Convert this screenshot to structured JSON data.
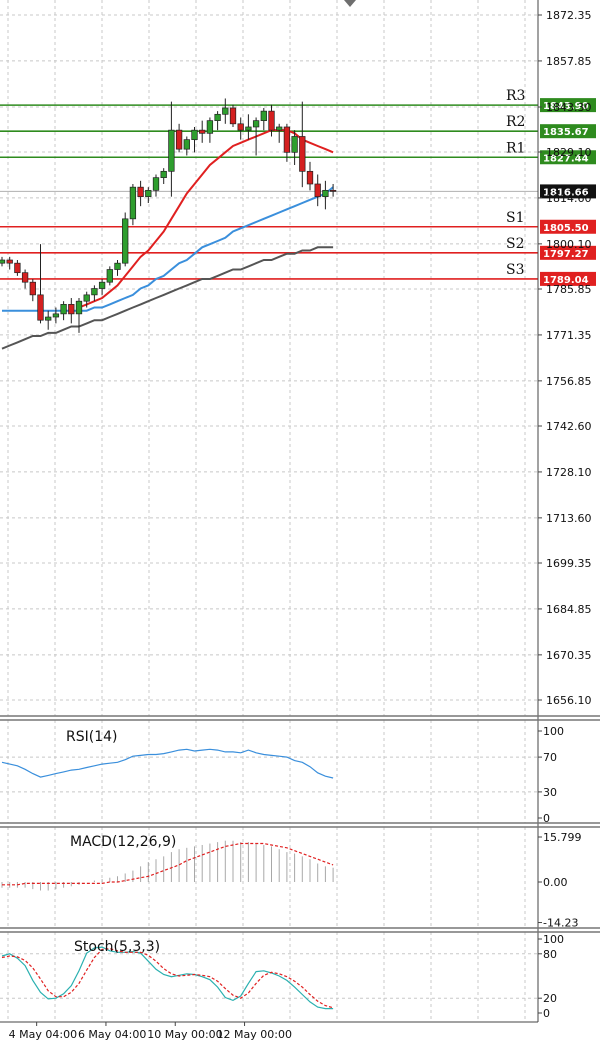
{
  "chart_data": {
    "type": "candlestick",
    "price_axis": {
      "range": [
        1650.0,
        1878.0
      ],
      "ticks": [
        "1872.35",
        "1857.85",
        "1843.30",
        "1829.10",
        "1814.60",
        "1800.10",
        "1785.85",
        "1771.35",
        "1756.85",
        "1742.60",
        "1728.10",
        "1713.60",
        "1699.35",
        "1684.85",
        "1670.35",
        "1656.10"
      ]
    },
    "levels": [
      {
        "name": "R3",
        "value": 1843.9,
        "label": "1843.90",
        "color": "#2e8b1e"
      },
      {
        "name": "R2",
        "value": 1835.67,
        "label": "1835.67",
        "color": "#2e8b1e"
      },
      {
        "name": "R1",
        "value": 1827.44,
        "label": "1827.44",
        "color": "#2e8b1e"
      },
      {
        "name": "S1",
        "value": 1805.5,
        "label": "1805.50",
        "color": "#e02020"
      },
      {
        "name": "S2",
        "value": 1797.27,
        "label": "1797.27",
        "color": "#e02020"
      },
      {
        "name": "S3",
        "value": 1789.04,
        "label": "1789.04",
        "color": "#e02020"
      }
    ],
    "current_price": {
      "value": 1816.66,
      "label": "1816.66"
    },
    "candles": [
      [
        1794,
        1796,
        1793,
        1795
      ],
      [
        1795,
        1796,
        1792,
        1794
      ],
      [
        1794,
        1795,
        1790,
        1791
      ],
      [
        1791,
        1792,
        1786,
        1788
      ],
      [
        1788,
        1789,
        1782,
        1784
      ],
      [
        1784,
        1800,
        1775,
        1776
      ],
      [
        1776,
        1779,
        1773,
        1777
      ],
      [
        1777,
        1780,
        1775,
        1778
      ],
      [
        1778,
        1782,
        1776,
        1781
      ],
      [
        1781,
        1783,
        1775,
        1778
      ],
      [
        1778,
        1783,
        1772,
        1782
      ],
      [
        1782,
        1785,
        1780,
        1784
      ],
      [
        1784,
        1787,
        1782,
        1786
      ],
      [
        1786,
        1789,
        1784,
        1788
      ],
      [
        1788,
        1793,
        1787,
        1792
      ],
      [
        1792,
        1795,
        1790,
        1794
      ],
      [
        1794,
        1810,
        1793,
        1808
      ],
      [
        1808,
        1819,
        1806,
        1818
      ],
      [
        1818,
        1820,
        1812,
        1815
      ],
      [
        1815,
        1818,
        1813,
        1817
      ],
      [
        1817,
        1822,
        1815,
        1821
      ],
      [
        1821,
        1824,
        1819,
        1823
      ],
      [
        1823,
        1845,
        1815,
        1836
      ],
      [
        1836,
        1838,
        1829,
        1830
      ],
      [
        1830,
        1834,
        1828,
        1833
      ],
      [
        1833,
        1837,
        1829,
        1836
      ],
      [
        1836,
        1839,
        1832,
        1835
      ],
      [
        1835,
        1840,
        1832,
        1839
      ],
      [
        1839,
        1842,
        1836,
        1841
      ],
      [
        1841,
        1846,
        1838,
        1843
      ],
      [
        1843,
        1844,
        1837,
        1838
      ],
      [
        1838,
        1840,
        1833,
        1836
      ],
      [
        1836,
        1841,
        1833,
        1837
      ],
      [
        1837,
        1840,
        1828,
        1839
      ],
      [
        1839,
        1843,
        1836,
        1842
      ],
      [
        1842,
        1844,
        1834,
        1836
      ],
      [
        1836,
        1838,
        1832,
        1837
      ],
      [
        1837,
        1838,
        1826,
        1829
      ],
      [
        1829,
        1836,
        1825,
        1834
      ],
      [
        1834,
        1845,
        1818,
        1823
      ],
      [
        1823,
        1826,
        1817,
        1819
      ],
      [
        1819,
        1822,
        1812,
        1815
      ],
      [
        1815,
        1820,
        1811,
        1817
      ],
      [
        1817,
        1819,
        1815,
        1816.66
      ]
    ],
    "moving_averages": [
      {
        "color": "#e02020",
        "values": [
          null,
          null,
          null,
          null,
          null,
          null,
          null,
          null,
          null,
          null,
          1780,
          1781,
          1782,
          1783,
          1785,
          1787,
          1790,
          1793,
          1796,
          1798,
          1801,
          1804,
          1808,
          1812,
          1816,
          1819,
          1822,
          1825,
          1827,
          1829,
          1831,
          1832,
          1833,
          1834,
          1835,
          1836,
          1836,
          1836,
          1835,
          1833,
          1832,
          1831,
          1830,
          1829
        ]
      },
      {
        "color": "#3a8fdc",
        "values": [
          1779,
          1779,
          1779,
          1779,
          1779,
          1779,
          1779,
          1779,
          1779,
          1779,
          1779,
          1779,
          1780,
          1780,
          1781,
          1782,
          1783,
          1784,
          1786,
          1787,
          1789,
          1790,
          1792,
          1794,
          1795,
          1797,
          1799,
          1800,
          1801,
          1802,
          1804,
          1805,
          1806,
          1807,
          1808,
          1809,
          1810,
          1811,
          1812,
          1813,
          1814,
          1815,
          1816,
          1818
        ]
      },
      {
        "color": "#555555",
        "values": [
          1767,
          1768,
          1769,
          1770,
          1771,
          1771,
          1772,
          1772,
          1773,
          1774,
          1774,
          1775,
          1776,
          1776,
          1777,
          1778,
          1779,
          1780,
          1781,
          1782,
          1783,
          1784,
          1785,
          1786,
          1787,
          1788,
          1789,
          1789,
          1790,
          1791,
          1792,
          1792,
          1793,
          1794,
          1795,
          1795,
          1796,
          1797,
          1797,
          1798,
          1798,
          1799,
          1799,
          1799
        ]
      }
    ],
    "rsi": {
      "label": "RSI(14)",
      "ticks": [
        "100",
        "70",
        "30",
        "0"
      ],
      "values": [
        64,
        62,
        60,
        56,
        51,
        47,
        49,
        51,
        53,
        55,
        56,
        58,
        60,
        62,
        63,
        64,
        67,
        71,
        72,
        73,
        73,
        74,
        76,
        78,
        79,
        77,
        78,
        79,
        78,
        76,
        76,
        75,
        78,
        75,
        73,
        72,
        71,
        70,
        66,
        64,
        59,
        52,
        48,
        46
      ]
    },
    "macd": {
      "label": "MACD(12,26,9)",
      "ticks": [
        "15.799",
        "0.00",
        "-14.23"
      ],
      "histogram": [
        -2,
        -2,
        -2,
        -2,
        -2.5,
        -3,
        -3,
        -2.5,
        -2,
        -1.5,
        -1,
        0,
        0.5,
        1,
        1.5,
        2,
        3,
        4,
        5.5,
        7,
        8,
        9,
        10.5,
        11.5,
        12,
        12.5,
        13,
        13.5,
        14,
        14.5,
        14.5,
        14,
        14,
        13.5,
        13,
        12.5,
        11.5,
        10.5,
        10,
        9,
        8,
        6.5,
        5.5,
        5
      ],
      "signal": [
        -1,
        -1,
        -1,
        -0.5,
        -0.5,
        -0.5,
        -0.5,
        -0.5,
        -0.5,
        -0.5,
        -0.5,
        -0.5,
        -0.5,
        -0.5,
        0,
        0,
        0.5,
        1,
        1.5,
        2,
        3,
        4,
        5,
        6,
        7.5,
        8.5,
        9.5,
        10.5,
        11.5,
        12.5,
        13,
        13.5,
        13.5,
        13.5,
        13.5,
        13,
        12.5,
        12,
        11,
        10,
        9,
        8,
        7,
        6
      ]
    },
    "stoch": {
      "label": "Stoch(5,3,3)",
      "ticks": [
        "100",
        "80",
        "20",
        "0"
      ],
      "k": [
        77,
        80,
        74,
        64,
        44,
        28,
        19,
        20,
        26,
        37,
        57,
        81,
        88,
        89,
        84,
        82,
        82,
        83,
        81,
        70,
        59,
        52,
        49,
        51,
        53,
        52,
        49,
        45,
        35,
        21,
        17,
        23,
        40,
        56,
        57,
        54,
        50,
        44,
        35,
        25,
        15,
        8,
        6,
        6
      ],
      "d": [
        75,
        77,
        76,
        71,
        61,
        46,
        30,
        22,
        22,
        28,
        40,
        58,
        75,
        86,
        87,
        84,
        82,
        82,
        82,
        78,
        70,
        60,
        53,
        50,
        51,
        52,
        51,
        49,
        43,
        33,
        24,
        20,
        27,
        40,
        51,
        55,
        53,
        49,
        43,
        35,
        25,
        16,
        10,
        7
      ]
    },
    "time_axis": {
      "labels": [
        "4 May 04:00",
        "6 May 04:00",
        "10 May 00:00",
        "12 May 00:00"
      ],
      "candle_index": [
        4.5,
        13.5,
        22.5,
        31.5
      ]
    }
  }
}
